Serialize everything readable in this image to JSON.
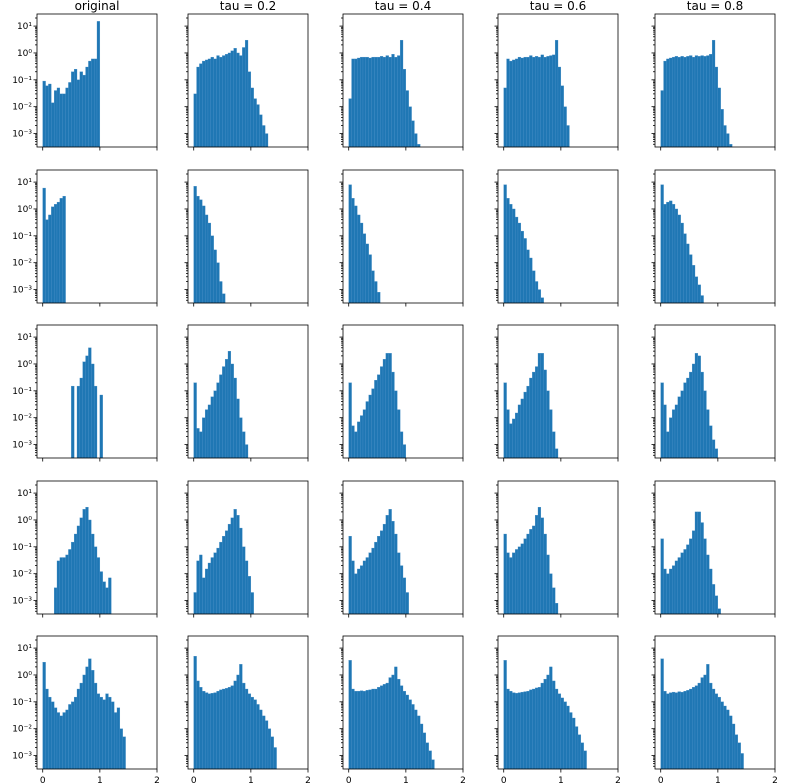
{
  "chart_data": {
    "type": "histogram-grid",
    "columns": [
      "original",
      "tau = 0.2",
      "tau = 0.4",
      "tau = 0.6",
      "tau = 0.8"
    ],
    "x_ticks": [
      "0",
      "1",
      "2"
    ],
    "y_ticks": [
      "10⁻³",
      "10⁻²",
      "10⁻¹",
      "10⁰",
      "10¹"
    ],
    "xlim": [
      -0.1,
      2.0
    ],
    "ylim_log10": [
      -3.5,
      1.45
    ],
    "yscale": "log",
    "bar_color": "#1f77b4",
    "bin_width": 0.05,
    "panels": [
      [
        {
          "x0": 0.0,
          "values": [
            0.09,
            0.06,
            0.07,
            0.014,
            0.04,
            0.05,
            0.03,
            0.03,
            0.05,
            0.08,
            0.2,
            0.25,
            0.1,
            0.2,
            0.15,
            0.3,
            0.5,
            0.6,
            0.6,
            15
          ]
        },
        {
          "x0": 0.0,
          "values": [
            0.03,
            0.3,
            0.4,
            0.5,
            0.55,
            0.6,
            0.7,
            0.6,
            0.8,
            0.7,
            0.8,
            0.9,
            1.0,
            1.2,
            1.5,
            1.0,
            0.8,
            1.6,
            3.0,
            0.2,
            0.05,
            0.02,
            0.012,
            0.005,
            0.002,
            0.001
          ]
        },
        {
          "x0": 0.0,
          "values": [
            0.02,
            0.6,
            0.6,
            0.65,
            0.7,
            0.7,
            0.7,
            0.65,
            0.7,
            0.7,
            0.7,
            0.75,
            0.7,
            0.8,
            0.7,
            0.9,
            0.7,
            0.8,
            3.0,
            0.25,
            0.04,
            0.01,
            0.003,
            0.001,
            0.0004
          ]
        },
        {
          "x0": 0.0,
          "values": [
            0.05,
            0.6,
            0.5,
            0.55,
            0.6,
            0.7,
            0.65,
            0.7,
            0.7,
            0.8,
            0.7,
            0.75,
            0.7,
            0.85,
            0.7,
            0.75,
            0.8,
            0.85,
            3.0,
            0.3,
            0.06,
            0.01,
            0.002
          ]
        },
        {
          "x0": 0.0,
          "values": [
            0.04,
            0.5,
            0.6,
            0.65,
            0.7,
            0.75,
            0.7,
            0.75,
            0.7,
            0.75,
            0.8,
            0.7,
            0.8,
            0.75,
            0.8,
            0.75,
            0.8,
            0.9,
            3.0,
            0.3,
            0.05,
            0.008,
            0.002,
            0.001,
            0.0004
          ]
        }
      ],
      [
        {
          "x0": 0.0,
          "values": [
            6.0,
            0.4,
            0.6,
            1.2,
            1.5,
            1.8,
            2.5,
            3.0
          ]
        },
        {
          "x0": 0.0,
          "values": [
            7.0,
            3.0,
            2.2,
            1.3,
            0.6,
            0.3,
            0.1,
            0.03,
            0.01,
            0.002,
            0.0007
          ]
        },
        {
          "x0": 0.0,
          "values": [
            8.0,
            2.5,
            1.3,
            0.6,
            0.3,
            0.12,
            0.05,
            0.02,
            0.005,
            0.002,
            0.0008,
            0.0003
          ]
        },
        {
          "x0": 0.0,
          "values": [
            8.0,
            2.5,
            1.5,
            1.0,
            0.5,
            0.3,
            0.15,
            0.08,
            0.03,
            0.015,
            0.005,
            0.002,
            0.001,
            0.0005,
            0.0002
          ]
        },
        {
          "x0": 0.0,
          "values": [
            8.0,
            1.5,
            1.8,
            2.0,
            1.5,
            1.0,
            0.6,
            0.3,
            0.12,
            0.05,
            0.02,
            0.008,
            0.003,
            0.0015,
            0.0006,
            0.0003,
            0.0002,
            0.0001
          ]
        }
      ],
      [
        {
          "x0": 0.5,
          "values": [
            0.15,
            0,
            0.15,
            0.3,
            1.2,
            2.0,
            4.0,
            1.0,
            0.15,
            0,
            0.07
          ]
        },
        {
          "x0": 0.0,
          "values": [
            0.2,
            0.004,
            0.003,
            0.01,
            0.02,
            0.03,
            0.06,
            0.1,
            0.2,
            0.4,
            0.8,
            1.5,
            3.0,
            1.0,
            0.3,
            0.05,
            0.01,
            0.003,
            0.001
          ]
        },
        {
          "x0": 0.0,
          "values": [
            0.2,
            0.005,
            0.003,
            0.007,
            0.012,
            0.02,
            0.04,
            0.07,
            0.12,
            0.25,
            0.4,
            0.8,
            1.5,
            2.5,
            2.5,
            0.5,
            0.1,
            0.02,
            0.003,
            0.001
          ]
        },
        {
          "x0": 0.0,
          "values": [
            0.2,
            0.02,
            0.006,
            0.009,
            0.015,
            0.03,
            0.05,
            0.09,
            0.15,
            0.3,
            0.5,
            0.8,
            2.5,
            2.5,
            0.6,
            0.1,
            0.02,
            0.003,
            0.0007
          ]
        },
        {
          "x0": 0.0,
          "values": [
            0.2,
            0.03,
            0.003,
            0.01,
            0.02,
            0.03,
            0.06,
            0.1,
            0.2,
            0.3,
            0.5,
            1.0,
            2.5,
            2.0,
            0.5,
            0.1,
            0.02,
            0.005,
            0.0015,
            0.0007
          ]
        }
      ],
      [
        {
          "x0": 0.2,
          "values": [
            0.003,
            0.03,
            0.04,
            0.04,
            0.05,
            0.08,
            0.15,
            0.3,
            0.6,
            1.2,
            2.5,
            3.0,
            1.0,
            0.3,
            0.1,
            0.04,
            0.012,
            0.005,
            0.003,
            0.007
          ]
        },
        {
          "x0": 0.0,
          "values": [
            0.002,
            0.03,
            0.05,
            0.007,
            0.015,
            0.025,
            0.04,
            0.06,
            0.09,
            0.15,
            0.25,
            0.4,
            0.7,
            1.2,
            2.5,
            1.5,
            0.5,
            0.1,
            0.03,
            0.008,
            0.002
          ]
        },
        {
          "x0": 0.0,
          "values": [
            0.25,
            0.03,
            0.01,
            0.015,
            0.02,
            0.03,
            0.04,
            0.06,
            0.09,
            0.15,
            0.25,
            0.4,
            0.7,
            1.5,
            2.5,
            0.9,
            0.3,
            0.06,
            0.02,
            0.007,
            0.002
          ]
        },
        {
          "x0": 0.0,
          "values": [
            0.3,
            0.06,
            0.04,
            0.06,
            0.08,
            0.1,
            0.13,
            0.2,
            0.3,
            0.45,
            0.6,
            1.5,
            3.0,
            1.2,
            0.3,
            0.05,
            0.01,
            0.003,
            0.0008
          ]
        },
        {
          "x0": 0.0,
          "values": [
            0.2,
            0.015,
            0.01,
            0.015,
            0.02,
            0.03,
            0.04,
            0.06,
            0.08,
            0.12,
            0.2,
            0.4,
            2.0,
            2.0,
            0.8,
            0.2,
            0.05,
            0.015,
            0.004,
            0.0015,
            0.0005
          ]
        }
      ],
      [
        {
          "x0": 0.0,
          "values": [
            3.0,
            0.3,
            0.15,
            0.1,
            0.06,
            0.04,
            0.03,
            0.04,
            0.05,
            0.08,
            0.1,
            0.15,
            0.3,
            0.5,
            1.0,
            2.0,
            4.0,
            1.5,
            0.5,
            0.2,
            0.15,
            0.12,
            0.2,
            0.15,
            0.1,
            0.04,
            0.06,
            0.01,
            0.005
          ]
        },
        {
          "x0": 0.0,
          "values": [
            5.0,
            0.6,
            0.35,
            0.25,
            0.22,
            0.2,
            0.21,
            0.22,
            0.25,
            0.28,
            0.3,
            0.32,
            0.35,
            0.4,
            0.6,
            1.0,
            2.5,
            0.5,
            0.3,
            0.2,
            0.15,
            0.12,
            0.08,
            0.05,
            0.03,
            0.02,
            0.01,
            0.005,
            0.002
          ]
        },
        {
          "x0": 0.0,
          "values": [
            3.5,
            0.3,
            0.25,
            0.25,
            0.26,
            0.25,
            0.27,
            0.28,
            0.3,
            0.3,
            0.35,
            0.4,
            0.45,
            0.5,
            0.8,
            1.0,
            2.0,
            0.7,
            0.4,
            0.25,
            0.18,
            0.12,
            0.08,
            0.05,
            0.03,
            0.015,
            0.007,
            0.003,
            0.0015,
            0.0007
          ]
        },
        {
          "x0": 0.0,
          "values": [
            3.5,
            0.3,
            0.25,
            0.22,
            0.21,
            0.22,
            0.23,
            0.24,
            0.25,
            0.28,
            0.3,
            0.33,
            0.35,
            0.5,
            0.7,
            1.0,
            2.0,
            0.6,
            0.3,
            0.2,
            0.14,
            0.1,
            0.07,
            0.04,
            0.025,
            0.012,
            0.006,
            0.003,
            0.0015
          ]
        },
        {
          "x0": 0.0,
          "values": [
            4.0,
            0.25,
            0.2,
            0.22,
            0.23,
            0.22,
            0.24,
            0.23,
            0.25,
            0.27,
            0.3,
            0.35,
            0.4,
            0.5,
            0.8,
            1.0,
            2.5,
            0.5,
            0.3,
            0.2,
            0.15,
            0.1,
            0.07,
            0.05,
            0.03,
            0.015,
            0.006,
            0.003,
            0.0012
          ]
        }
      ]
    ]
  }
}
